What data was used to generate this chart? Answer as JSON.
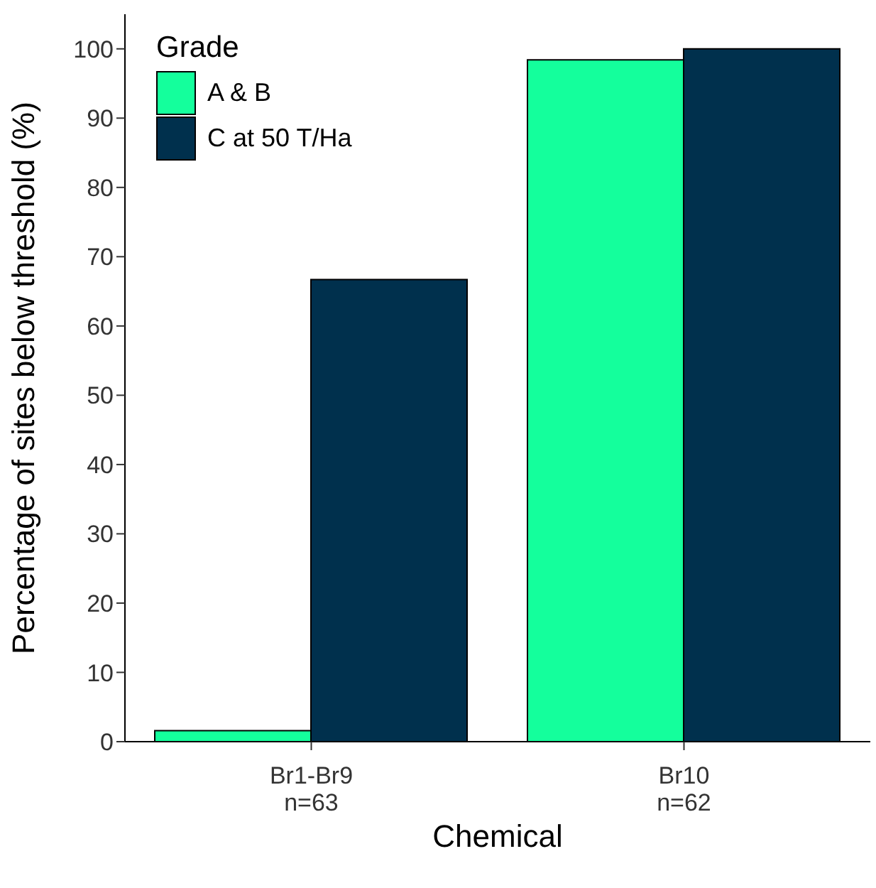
{
  "chart_data": {
    "type": "bar",
    "xlabel": "Chemical",
    "ylabel": "Percentage of sites below threshold (%)",
    "legend_title": "Grade",
    "legend": "top left",
    "categories": [
      "Br1-Br9\nn=63",
      "Br10\nn=62"
    ],
    "series": [
      {
        "name": "A & B",
        "color": "#14ff9c",
        "values": [
          1.6,
          98.4
        ]
      },
      {
        "name": "C at 50 T/Ha",
        "color": "#00304d",
        "values": [
          66.7,
          100
        ]
      }
    ],
    "ylim": [
      0,
      105
    ],
    "yticks": [
      0,
      10,
      20,
      30,
      40,
      50,
      60,
      70,
      80,
      90,
      100
    ],
    "grid": false
  }
}
